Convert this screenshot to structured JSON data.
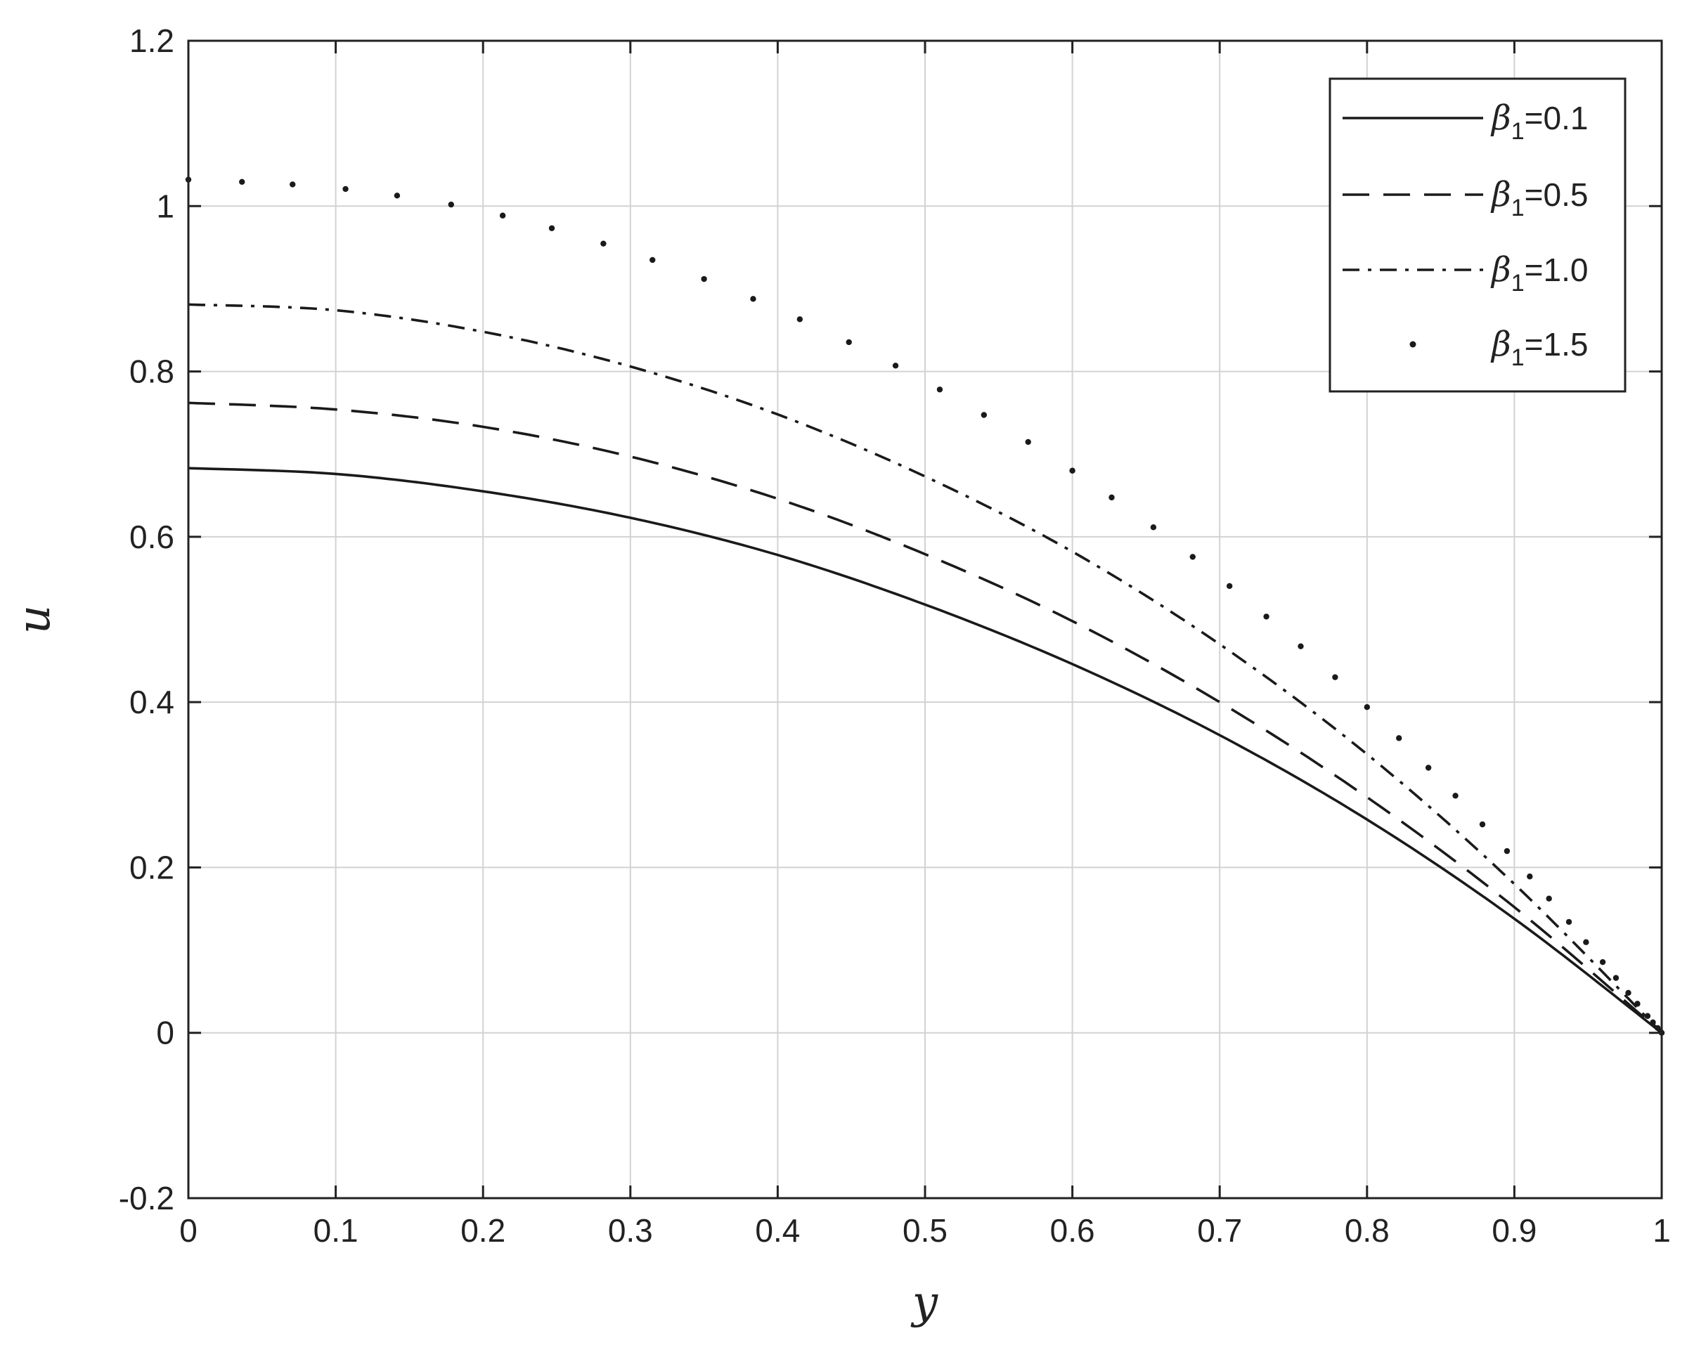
{
  "chart_data": {
    "type": "line",
    "title": "",
    "xlabel": "y",
    "ylabel": "u",
    "xlim": [
      0,
      1
    ],
    "ylim": [
      -0.2,
      1.2
    ],
    "x_ticks": [
      "0",
      "0.1",
      "0.2",
      "0.3",
      "0.4",
      "0.5",
      "0.6",
      "0.7",
      "0.8",
      "0.9",
      "1"
    ],
    "y_ticks": [
      "-0.2",
      "0",
      "0.2",
      "0.4",
      "0.6",
      "0.8",
      "1",
      "1.2"
    ],
    "grid": true,
    "legend_position": "top-right",
    "x": [
      0,
      0.1,
      0.2,
      0.3,
      0.4,
      0.5,
      0.6,
      0.7,
      0.8,
      0.9,
      1.0
    ],
    "series": [
      {
        "name": "β1=0.1",
        "legend_symbol": "β",
        "legend_subscript": "1",
        "legend_value": "=0.1",
        "style": "solid",
        "values": [
          0.683,
          0.676,
          0.655,
          0.623,
          0.578,
          0.518,
          0.446,
          0.36,
          0.258,
          0.138,
          0.0
        ]
      },
      {
        "name": "β1=0.5",
        "legend_symbol": "β",
        "legend_subscript": "1",
        "legend_value": "=0.5",
        "style": "dashed",
        "values": [
          0.762,
          0.754,
          0.733,
          0.697,
          0.646,
          0.579,
          0.498,
          0.4,
          0.285,
          0.152,
          0.0
        ]
      },
      {
        "name": "β1=1.0",
        "legend_symbol": "β",
        "legend_subscript": "1",
        "legend_value": "=1.0",
        "style": "dashdot",
        "values": [
          0.881,
          0.874,
          0.848,
          0.806,
          0.748,
          0.673,
          0.582,
          0.47,
          0.337,
          0.18,
          0.0
        ]
      },
      {
        "name": "β1=1.5",
        "legend_symbol": "β",
        "legend_subscript": "1",
        "legend_value": "=1.5",
        "style": "dotted",
        "values": [
          1.032,
          1.022,
          0.994,
          0.944,
          0.875,
          0.788,
          0.68,
          0.55,
          0.394,
          0.21,
          0.0
        ]
      }
    ]
  },
  "colors": {
    "line": "#1a1a1a",
    "grid": "#d2d2d2",
    "axis": "#222222",
    "background": "#ffffff"
  }
}
